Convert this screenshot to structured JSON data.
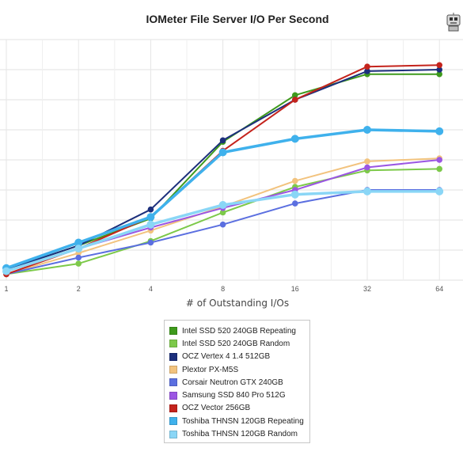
{
  "chart_data": {
    "type": "line",
    "title": "IOMeter File Server I/O Per Second",
    "xlabel": "# of Outstanding I/Os",
    "ylabel": "",
    "x": [
      1,
      2,
      4,
      8,
      16,
      32,
      64
    ],
    "x_scale": "log2",
    "ylim": [
      0,
      80000
    ],
    "grid": true,
    "legend_position": "bottom",
    "series": [
      {
        "name": "Intel SSD 520 240GB Repeating",
        "color": "#3e9a1c",
        "values": [
          3500,
          11500,
          20500,
          46000,
          61500,
          68500,
          68500
        ]
      },
      {
        "name": "Intel SSD 520 240GB Random",
        "color": "#7dc94a",
        "values": [
          2000,
          5500,
          13000,
          22500,
          31000,
          36500,
          37000
        ]
      },
      {
        "name": "OCZ Vertex 4 1.4 512GB",
        "color": "#1c2f7c",
        "values": [
          3500,
          11500,
          23500,
          46500,
          60000,
          69500,
          70000
        ]
      },
      {
        "name": "Plextor PX-M5S",
        "color": "#f2c37e",
        "values": [
          2000,
          9000,
          16500,
          24500,
          33000,
          39500,
          40500
        ]
      },
      {
        "name": "Corsair Neutron GTX 240GB",
        "color": "#5b6fe0",
        "values": [
          2000,
          7500,
          12500,
          18500,
          25500,
          30000,
          30000
        ]
      },
      {
        "name": "Samsung SSD 840 Pro 512G",
        "color": "#9b56e3",
        "values": [
          3000,
          10500,
          17500,
          24000,
          30000,
          37500,
          40000
        ]
      },
      {
        "name": "OCZ Vector 256GB",
        "color": "#c4231c",
        "values": [
          2000,
          10500,
          21000,
          43000,
          60000,
          71000,
          71500
        ]
      },
      {
        "name": "Toshiba THNSN 120GB Repeating",
        "color": "#3fb1ec",
        "values": [
          4000,
          12500,
          21000,
          42500,
          47000,
          50000,
          49500
        ]
      },
      {
        "name": "Toshiba THNSN 120GB Random",
        "color": "#8ad6f6",
        "values": [
          3000,
          10500,
          18500,
          25000,
          28500,
          29500,
          29500
        ]
      }
    ]
  },
  "logo_icon": "robot-mascot-icon"
}
